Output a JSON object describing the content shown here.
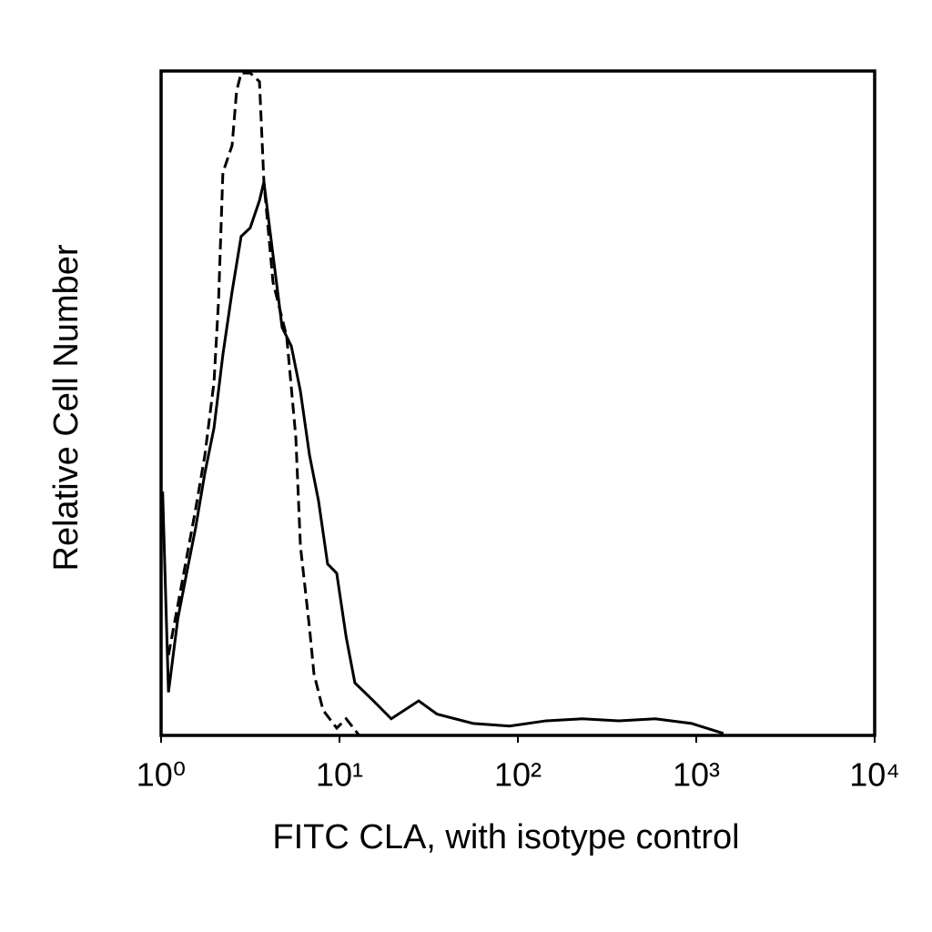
{
  "chart_data": {
    "type": "line",
    "x_label": "FITC CLA, with isotype control",
    "y_label": "Relative Cell Number",
    "xscale": "log",
    "xlim": [
      1,
      10000
    ],
    "xticks": [
      {
        "value": 1,
        "label": "10⁰"
      },
      {
        "value": 10,
        "label": "10¹"
      },
      {
        "value": 100,
        "label": "10²"
      },
      {
        "value": 1000,
        "label": "10³"
      },
      {
        "value": 10000,
        "label": "10⁴"
      }
    ],
    "ylim": [
      0,
      100
    ],
    "series": [
      {
        "color": "#000000",
        "dashed": false,
        "x": [
          1.02,
          1.1,
          1.24,
          1.39,
          1.56,
          1.76,
          1.98,
          2.22,
          2.5,
          2.81,
          3.16,
          3.56,
          3.77,
          4.24,
          4.77,
          5.37,
          6.04,
          6.79,
          7.63,
          8.58,
          9.65,
          10.9,
          12.2,
          13.7,
          15.5,
          19.5,
          27.8,
          35.2,
          56.2,
          89.9,
          144,
          230,
          368,
          589,
          942,
          1420
        ],
        "values": [
          36.7,
          6.5,
          17.5,
          24.4,
          31.2,
          39.5,
          46.3,
          57.3,
          66.8,
          75.1,
          76.4,
          80.5,
          83.3,
          72.3,
          61.4,
          58.6,
          51.8,
          42.2,
          35.3,
          25.8,
          24.4,
          14.8,
          7.9,
          6.6,
          5.2,
          2.5,
          5.2,
          3.2,
          1.8,
          1.4,
          2.2,
          2.5,
          2.2,
          2.5,
          1.8,
          0.3
        ]
      },
      {
        "color": "#000000",
        "dashed": true,
        "x": [
          1.1,
          1.31,
          1.56,
          1.76,
          1.98,
          2.1,
          2.22,
          2.5,
          2.65,
          2.81,
          3.16,
          3.56,
          3.77,
          4.24,
          5.06,
          5.69,
          6.04,
          6.79,
          7.19,
          8.09,
          9.65,
          10.9,
          12.9
        ],
        "values": [
          12.1,
          23.0,
          34.0,
          42.2,
          53.2,
          65.5,
          84.7,
          88.8,
          97.0,
          99.7,
          99.7,
          98.4,
          83.3,
          68.2,
          60.0,
          44.9,
          28.5,
          16.2,
          9.3,
          3.8,
          1.1,
          2.5,
          0
        ]
      }
    ]
  }
}
